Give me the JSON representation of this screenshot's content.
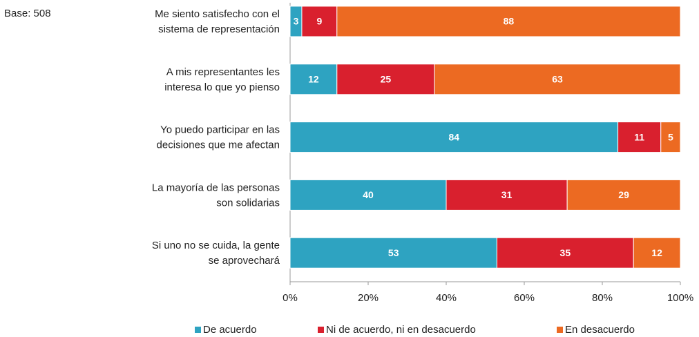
{
  "chart_data": {
    "type": "stacked-barh",
    "note": "Base: 508",
    "categories": [
      [
        "Me siento satisfecho con el",
        "sistema de representación"
      ],
      [
        "A mis representantes les",
        "interesa lo que yo pienso"
      ],
      [
        "Yo puedo participar en las",
        "decisiones que me afectan"
      ],
      [
        "La mayoría de las personas",
        "son solidarias"
      ],
      [
        "Si uno no se cuida, la gente",
        "se aprovechará"
      ]
    ],
    "series": [
      {
        "name": "De acuerdo",
        "color": "#2ea3c1",
        "values": [
          3,
          12,
          84,
          40,
          53
        ]
      },
      {
        "name": "Ni de acuerdo, ni en desacuerdo",
        "color": "#d9202e",
        "values": [
          9,
          25,
          11,
          31,
          35
        ]
      },
      {
        "name": "En desacuerdo",
        "color": "#ec6a22",
        "values": [
          88,
          63,
          5,
          29,
          12
        ]
      }
    ],
    "xlim": [
      0,
      100
    ],
    "xticks": [
      {
        "value": 0,
        "label": "0%"
      },
      {
        "value": 20,
        "label": "20%"
      },
      {
        "value": 40,
        "label": "40%"
      },
      {
        "value": 60,
        "label": "60%"
      },
      {
        "value": 80,
        "label": "80%"
      },
      {
        "value": 100,
        "label": "100%"
      }
    ],
    "legend": "bottom"
  }
}
